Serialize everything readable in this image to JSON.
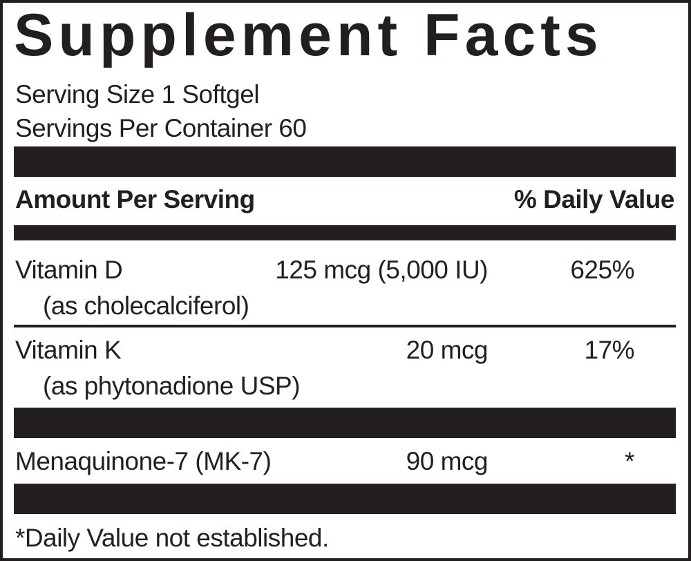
{
  "title": "Supplement Facts",
  "serving_size": "Serving Size 1 Softgel",
  "servings_per_container": "Servings Per Container 60",
  "header": {
    "amount_per_serving": "Amount Per Serving",
    "daily_value": "% Daily Value"
  },
  "rows": [
    {
      "name": "Vitamin D",
      "sub": "(as cholecalciferol)",
      "amount": "125 mcg (5,000 IU)",
      "dv": "625%"
    },
    {
      "name": "Vitamin K",
      "sub": "(as phytonadione USP)",
      "amount": "20 mcg",
      "dv": "17%"
    },
    {
      "name": "Menaquinone-7 (MK-7)",
      "amount": "90 mcg",
      "dv": "*"
    }
  ],
  "footnote": "*Daily Value not established.",
  "colors": {
    "ink": "#231f20",
    "background": "#ffffff"
  }
}
